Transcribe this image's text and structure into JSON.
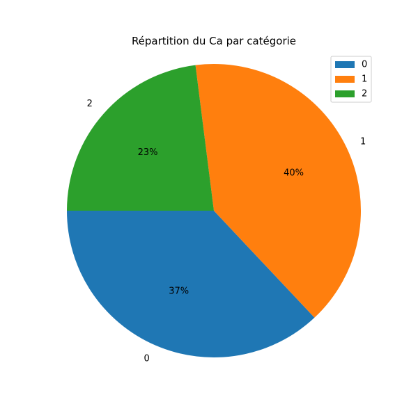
{
  "chart_data": {
    "type": "pie",
    "title": "Répartition du Ca par catégorie",
    "categories": [
      "0",
      "1",
      "2"
    ],
    "values": [
      37,
      40,
      23
    ],
    "percent_labels": [
      "37%",
      "40%",
      "23%"
    ],
    "colors": [
      "#1f77b4",
      "#ff7f0e",
      "#2ca02c"
    ],
    "start_angle_deg": 180,
    "direction": "counterclockwise",
    "legend": {
      "placement": "top-right",
      "entries": [
        "0",
        "1",
        "2"
      ]
    }
  }
}
